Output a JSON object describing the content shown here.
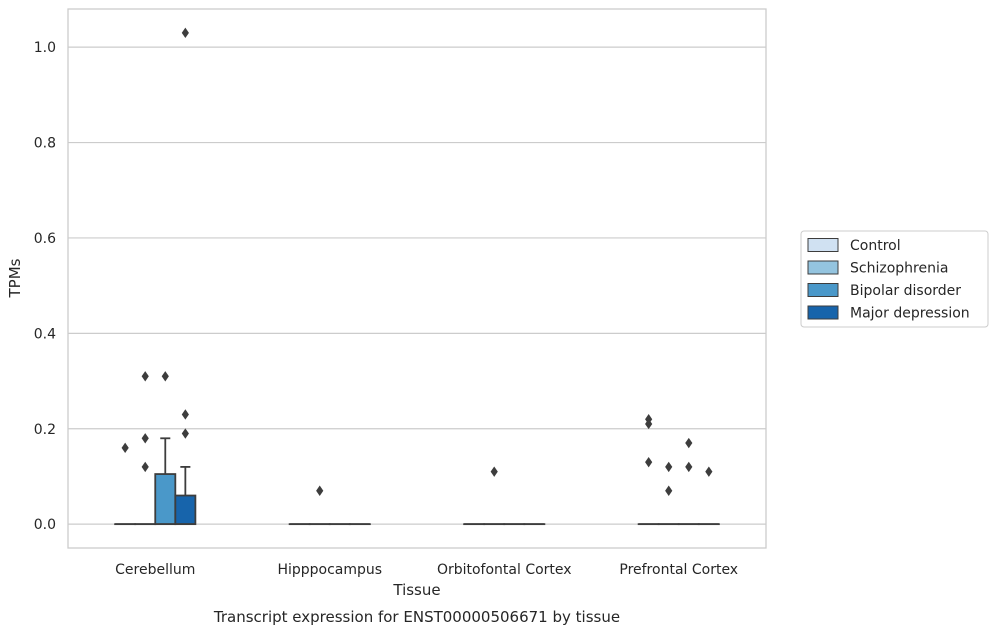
{
  "chart_data": {
    "type": "box",
    "title": "",
    "xlabel": "Tissue",
    "ylabel": "TPMs",
    "caption": "Transcript expression for ENST00000506671 by tissue",
    "categories": [
      "Cerebellum",
      "Hipppocampus",
      "Orbitofontal Cortex",
      "Prefrontal Cortex"
    ],
    "ylim": [
      -0.05,
      1.08
    ],
    "yticks": [
      0.0,
      0.2,
      0.4,
      0.6,
      0.8,
      1.0
    ],
    "ytick_labels": [
      "0.0",
      "0.2",
      "0.4",
      "0.6",
      "0.8",
      "1.0"
    ],
    "grid": "horizontal",
    "legend_position": "right",
    "series": [
      {
        "name": "Control",
        "color": "#d0e1f2",
        "boxes": [
          {
            "category": "Cerebellum",
            "q1": 0.0,
            "median": 0.0,
            "q3": 0.0,
            "whislo": 0.0,
            "whishi": 0.0,
            "outliers": [
              0.16
            ]
          },
          {
            "category": "Hipppocampus",
            "q1": 0.0,
            "median": 0.0,
            "q3": 0.0,
            "whislo": 0.0,
            "whishi": 0.0,
            "outliers": []
          },
          {
            "category": "Orbitofontal Cortex",
            "q1": 0.0,
            "median": 0.0,
            "q3": 0.0,
            "whislo": 0.0,
            "whishi": 0.0,
            "outliers": []
          },
          {
            "category": "Prefrontal Cortex",
            "q1": 0.0,
            "median": 0.0,
            "q3": 0.0,
            "whislo": 0.0,
            "whishi": 0.0,
            "outliers": [
              0.22,
              0.21,
              0.13
            ]
          }
        ]
      },
      {
        "name": "Schizophrenia",
        "color": "#94c4df",
        "boxes": [
          {
            "category": "Cerebellum",
            "q1": 0.0,
            "median": 0.0,
            "q3": 0.0,
            "whislo": 0.0,
            "whishi": 0.0,
            "outliers": [
              0.31,
              0.18,
              0.12
            ]
          },
          {
            "category": "Hipppocampus",
            "q1": 0.0,
            "median": 0.0,
            "q3": 0.0,
            "whislo": 0.0,
            "whishi": 0.0,
            "outliers": [
              0.07
            ]
          },
          {
            "category": "Orbitofontal Cortex",
            "q1": 0.0,
            "median": 0.0,
            "q3": 0.0,
            "whislo": 0.0,
            "whishi": 0.0,
            "outliers": [
              0.11
            ]
          },
          {
            "category": "Prefrontal Cortex",
            "q1": 0.0,
            "median": 0.0,
            "q3": 0.0,
            "whislo": 0.0,
            "whishi": 0.0,
            "outliers": [
              0.12,
              0.07
            ]
          }
        ]
      },
      {
        "name": "Bipolar disorder",
        "color": "#4a98c9",
        "boxes": [
          {
            "category": "Cerebellum",
            "q1": 0.0,
            "median": 0.0,
            "q3": 0.105,
            "whislo": 0.0,
            "whishi": 0.18,
            "outliers": [
              0.31
            ]
          },
          {
            "category": "Hipppocampus",
            "q1": 0.0,
            "median": 0.0,
            "q3": 0.0,
            "whislo": 0.0,
            "whishi": 0.0,
            "outliers": []
          },
          {
            "category": "Orbitofontal Cortex",
            "q1": 0.0,
            "median": 0.0,
            "q3": 0.0,
            "whislo": 0.0,
            "whishi": 0.0,
            "outliers": []
          },
          {
            "category": "Prefrontal Cortex",
            "q1": 0.0,
            "median": 0.0,
            "q3": 0.0,
            "whislo": 0.0,
            "whishi": 0.0,
            "outliers": [
              0.17,
              0.12
            ]
          }
        ]
      },
      {
        "name": "Major depression",
        "color": "#1764ab",
        "boxes": [
          {
            "category": "Cerebellum",
            "q1": 0.0,
            "median": 0.0,
            "q3": 0.06,
            "whislo": 0.0,
            "whishi": 0.12,
            "outliers": [
              1.03,
              0.23,
              0.19
            ]
          },
          {
            "category": "Hipppocampus",
            "q1": 0.0,
            "median": 0.0,
            "q3": 0.0,
            "whislo": 0.0,
            "whishi": 0.0,
            "outliers": []
          },
          {
            "category": "Orbitofontal Cortex",
            "q1": 0.0,
            "median": 0.0,
            "q3": 0.0,
            "whislo": 0.0,
            "whishi": 0.0,
            "outliers": []
          },
          {
            "category": "Prefrontal Cortex",
            "q1": 0.0,
            "median": 0.0,
            "q3": 0.0,
            "whislo": 0.0,
            "whishi": 0.0,
            "outliers": [
              0.11
            ]
          }
        ]
      }
    ],
    "colors": {
      "axes_edge": "#cccccc",
      "grid": "#cccccc",
      "box_edge": "#3d3d3d",
      "text": "#262626"
    }
  }
}
